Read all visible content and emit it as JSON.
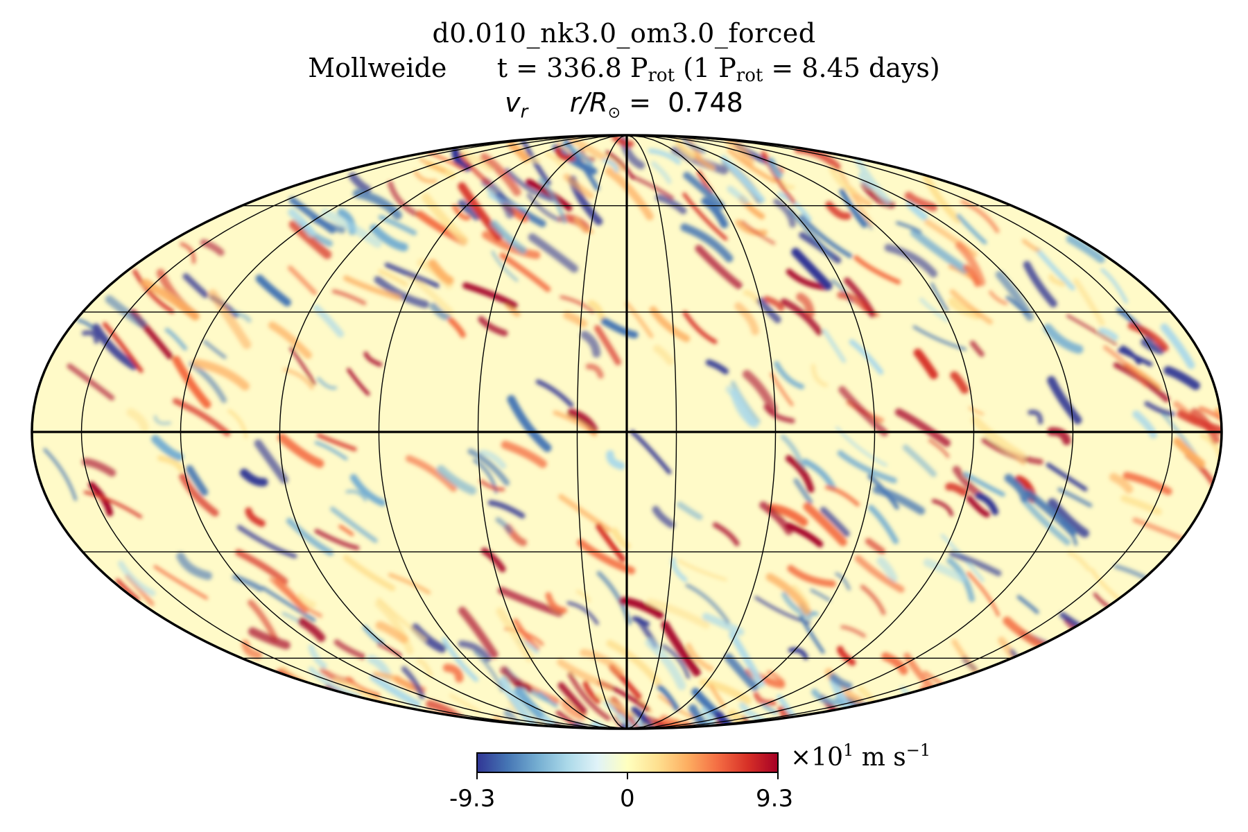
{
  "chart_data": {
    "type": "heatmap",
    "projection": "Mollweide",
    "title": "d0.010_nk3.0_om3.0_forced",
    "subtitle": {
      "projection_label": "Mollweide",
      "time_prefix": "t = 336.8 P",
      "time_sub": "rot",
      "time_mid": " (1 P",
      "time_sub2": "rot",
      "time_suffix": " = 8.45 days)"
    },
    "variable": {
      "name": "v",
      "name_sub": "r",
      "radius_label": "r/R",
      "radius_symbol": "⊙",
      "radius_value": " =  0.748"
    },
    "colorbar": {
      "min_label": "-9.3",
      "mid_label": "0",
      "max_label": "9.3",
      "vmin": -9.3,
      "vmax": 9.3,
      "unit_prefix": "×10",
      "unit_exp": "1",
      "unit_mid": " m s",
      "unit_exp2": "−1",
      "colormap": "RdYlBu_r"
    },
    "grid": {
      "meridians_deg": [
        -165,
        -135,
        -105,
        -75,
        -45,
        -15,
        15,
        45,
        75,
        105,
        135,
        165
      ],
      "parallels_deg": [
        -60,
        -30,
        30,
        60
      ],
      "bold_lines": [
        "equator",
        "central-meridian"
      ]
    }
  },
  "colors": {
    "low": "#313695",
    "mid": "#ffffbf",
    "high": "#a50026"
  }
}
